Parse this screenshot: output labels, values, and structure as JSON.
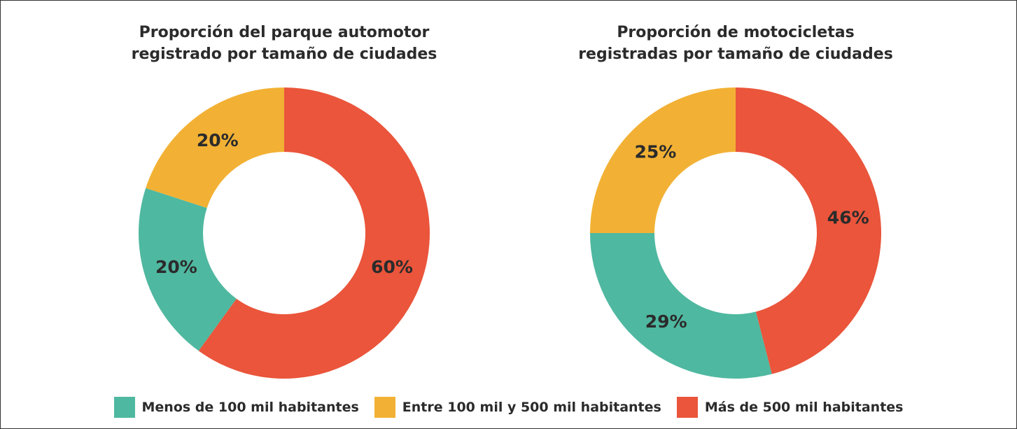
{
  "legend": {
    "labels": [
      "Menos de 100 mil habitantes",
      "Entre 100 mil y 500 mil habitantes",
      "Más de 500 mil habitantes"
    ],
    "colors": [
      "#4fb8a0",
      "#f2b134",
      "#ea553b"
    ]
  },
  "chart_data": [
    {
      "type": "donut",
      "title": [
        "Proporción del parque automotor",
        "registrado por tamaño de ciudades"
      ],
      "values": [
        20,
        20,
        60
      ],
      "value_labels": [
        "20%",
        "20%",
        "60%"
      ]
    },
    {
      "type": "donut",
      "title": [
        "Proporción de motocicletas",
        "registradas por tamaño de ciudades"
      ],
      "values": [
        29,
        25,
        46
      ],
      "value_labels": [
        "29%",
        "25%",
        "46%"
      ]
    }
  ]
}
